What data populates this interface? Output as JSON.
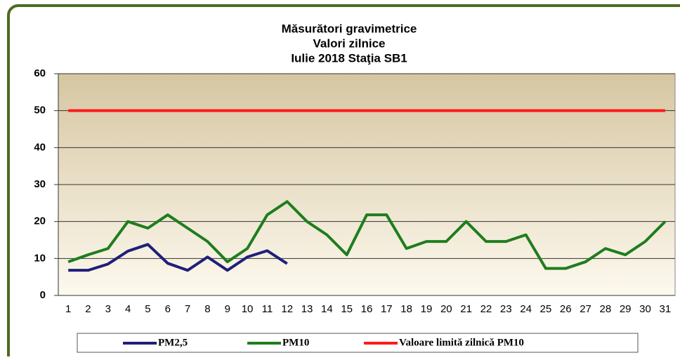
{
  "chart_data": {
    "type": "line",
    "title": "Măsurători gravimetrice",
    "subtitle": [
      "Valori zilnice",
      "Iulie 2018 Staţia SB1"
    ],
    "categories": [
      "1",
      "2",
      "3",
      "4",
      "5",
      "6",
      "7",
      "8",
      "9",
      "10",
      "11",
      "12",
      "13",
      "14",
      "15",
      "16",
      "17",
      "18",
      "19",
      "20",
      "21",
      "22",
      "23",
      "24",
      "25",
      "26",
      "27",
      "28",
      "29",
      "30",
      "31"
    ],
    "series": [
      {
        "name": "PM2,5",
        "color": "#1f1f7a",
        "values": [
          6.8,
          6.8,
          8.5,
          12,
          13.8,
          8.7,
          6.8,
          10.4,
          6.8,
          10.4,
          12.1,
          8.6,
          null,
          null,
          null,
          null,
          null,
          null,
          null,
          null,
          null,
          null,
          null,
          null,
          null,
          null,
          null,
          null,
          null,
          null,
          null
        ]
      },
      {
        "name": "PM10",
        "color": "#1e7d1e",
        "values": [
          9.1,
          11,
          12.7,
          20,
          18.2,
          21.8,
          18.2,
          14.6,
          9.1,
          12.7,
          21.8,
          25.4,
          20,
          16.4,
          11,
          21.8,
          21.8,
          12.7,
          14.6,
          14.6,
          20,
          14.6,
          14.6,
          16.4,
          7.3,
          7.3,
          9.1,
          12.7,
          11,
          14.6,
          20
        ]
      },
      {
        "name": "Valoare limită zilnică PM10",
        "color": "#ff1a1a",
        "values": [
          50,
          50,
          50,
          50,
          50,
          50,
          50,
          50,
          50,
          50,
          50,
          50,
          50,
          50,
          50,
          50,
          50,
          50,
          50,
          50,
          50,
          50,
          50,
          50,
          50,
          50,
          50,
          50,
          50,
          50,
          50
        ]
      }
    ],
    "ylim": [
      0,
      60
    ],
    "yticks": [
      0,
      10,
      20,
      30,
      40,
      50,
      60
    ],
    "grid": true
  }
}
